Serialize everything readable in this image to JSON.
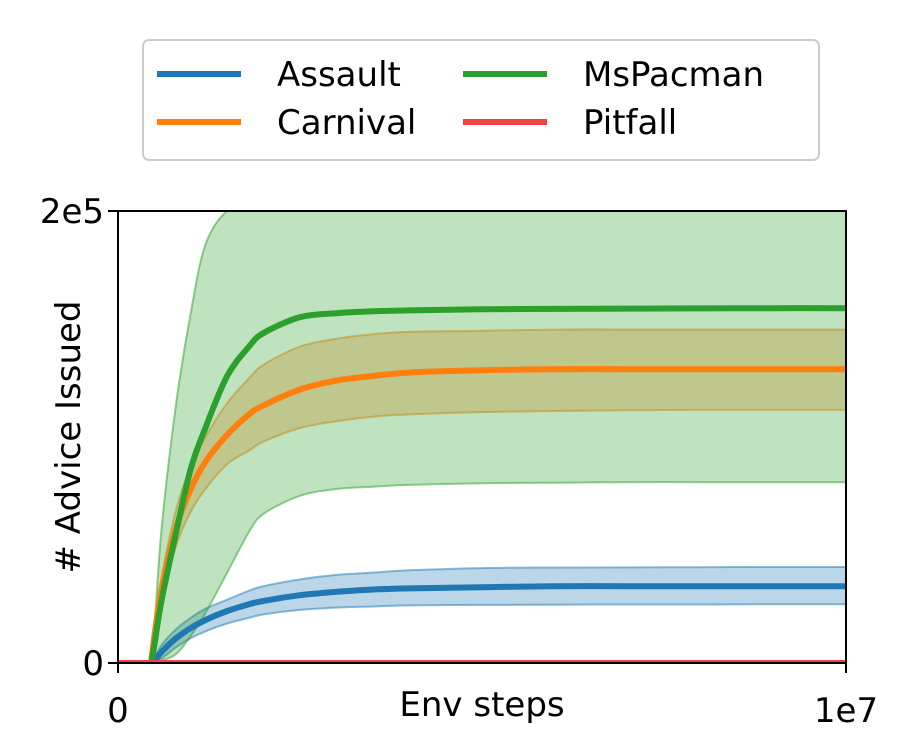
{
  "chart_data": {
    "type": "line",
    "title": "",
    "xlabel": "Env steps",
    "ylabel": "# Advice Issued",
    "xlim": [
      0,
      10000000
    ],
    "ylim": [
      0,
      200000
    ],
    "x_ticks": [
      {
        "value": 0,
        "label": "0"
      },
      {
        "value": 10000000,
        "label": "1e7"
      }
    ],
    "y_ticks": [
      {
        "value": 0,
        "label": "0"
      },
      {
        "value": 200000,
        "label": "2e5"
      }
    ],
    "legend": {
      "placement": "top-center",
      "columns": 2
    },
    "grid": false,
    "x": [
      0,
      400000,
      450000,
      500000,
      600000,
      800000,
      1000000,
      1200000,
      1500000,
      1800000,
      2000000,
      2500000,
      3000000,
      3500000,
      4000000,
      5000000,
      6000000,
      7000000,
      8000000,
      9000000,
      10000000
    ],
    "series": [
      {
        "name": "Assault",
        "color": "#1f77b4",
        "mean": [
          0,
          0,
          0,
          1000,
          5000,
          11000,
          15500,
          19000,
          23000,
          26000,
          27500,
          30000,
          31500,
          32500,
          33000,
          33500,
          34000,
          34000,
          34000,
          34000,
          34000
        ],
        "lower": [
          0,
          0,
          0,
          0,
          2000,
          7000,
          11000,
          14000,
          17500,
          20000,
          21500,
          23500,
          24500,
          25000,
          25500,
          25700,
          25800,
          25900,
          25900,
          26000,
          26000
        ],
        "upper": [
          0,
          0,
          0,
          2000,
          8000,
          15000,
          20000,
          24000,
          28000,
          32000,
          34000,
          37000,
          39000,
          40000,
          41000,
          42000,
          42200,
          42300,
          42400,
          42500,
          42500
        ]
      },
      {
        "name": "Carnival",
        "color": "#ff7f0e",
        "mean": [
          0,
          0,
          0,
          12000,
          33000,
          60000,
          77000,
          89000,
          101000,
          110000,
          114000,
          121000,
          125000,
          127000,
          128500,
          129500,
          130000,
          130000,
          130000,
          130000,
          130000
        ],
        "lower": [
          0,
          0,
          0,
          10000,
          28000,
          52000,
          67000,
          77000,
          88000,
          94000,
          98000,
          104000,
          107000,
          109000,
          110000,
          111000,
          111500,
          111800,
          112000,
          112000,
          112000
        ],
        "upper": [
          0,
          0,
          0,
          14000,
          38000,
          68000,
          87000,
          100000,
          115000,
          126000,
          132000,
          140000,
          143500,
          145500,
          146500,
          147000,
          147500,
          147500,
          147500,
          147500,
          147500
        ]
      },
      {
        "name": "MsPacman",
        "color": "#2ca02c",
        "mean": [
          0,
          0,
          0,
          8000,
          28000,
          58000,
          86000,
          104000,
          127000,
          140000,
          146000,
          153000,
          154800,
          155600,
          156000,
          156500,
          156700,
          156800,
          156900,
          157000,
          157000
        ],
        "lower": [
          0,
          0,
          0,
          0,
          1000,
          4000,
          12000,
          22000,
          40000,
          58000,
          66000,
          74000,
          77000,
          78000,
          78800,
          79500,
          79800,
          80000,
          80000,
          80000,
          80000
        ],
        "upper": [
          0,
          0,
          0,
          15000,
          60000,
          115000,
          155000,
          185000,
          200000,
          200000,
          200000,
          200000,
          200000,
          200000,
          200000,
          200000,
          200000,
          200000,
          200000,
          200000,
          200000
        ]
      },
      {
        "name": "Pitfall",
        "color": "#f44040",
        "mean": [
          0,
          0,
          0,
          0,
          0,
          0,
          0,
          0,
          0,
          0,
          0,
          0,
          0,
          0,
          0,
          0,
          0,
          0,
          0,
          0,
          0
        ],
        "lower": [
          0,
          0,
          0,
          0,
          0,
          0,
          0,
          0,
          0,
          0,
          0,
          0,
          0,
          0,
          0,
          0,
          0,
          0,
          0,
          0,
          0
        ],
        "upper": [
          0,
          0,
          0,
          0,
          0,
          0,
          0,
          0,
          0,
          0,
          0,
          0,
          0,
          0,
          0,
          0,
          0,
          0,
          0,
          0,
          0
        ]
      }
    ]
  }
}
